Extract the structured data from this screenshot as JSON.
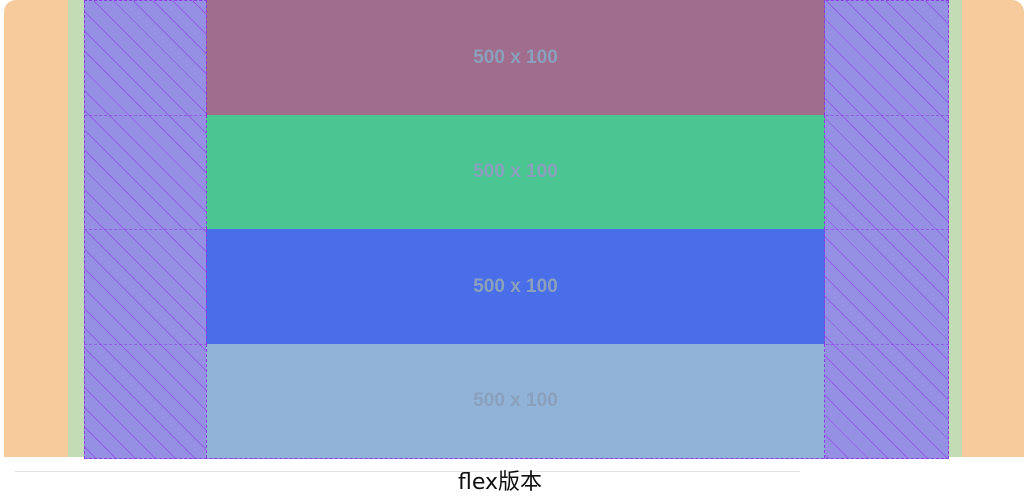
{
  "boxes": [
    {
      "label": "500 x 100",
      "color": "#a06d8d"
    },
    {
      "label": "500 x 100",
      "color": "#4bc591"
    },
    {
      "label": "500 x 100",
      "color": "#496ee8"
    },
    {
      "label": "500 x 100",
      "color": "#90b3d7"
    }
  ],
  "caption": "flex版本"
}
